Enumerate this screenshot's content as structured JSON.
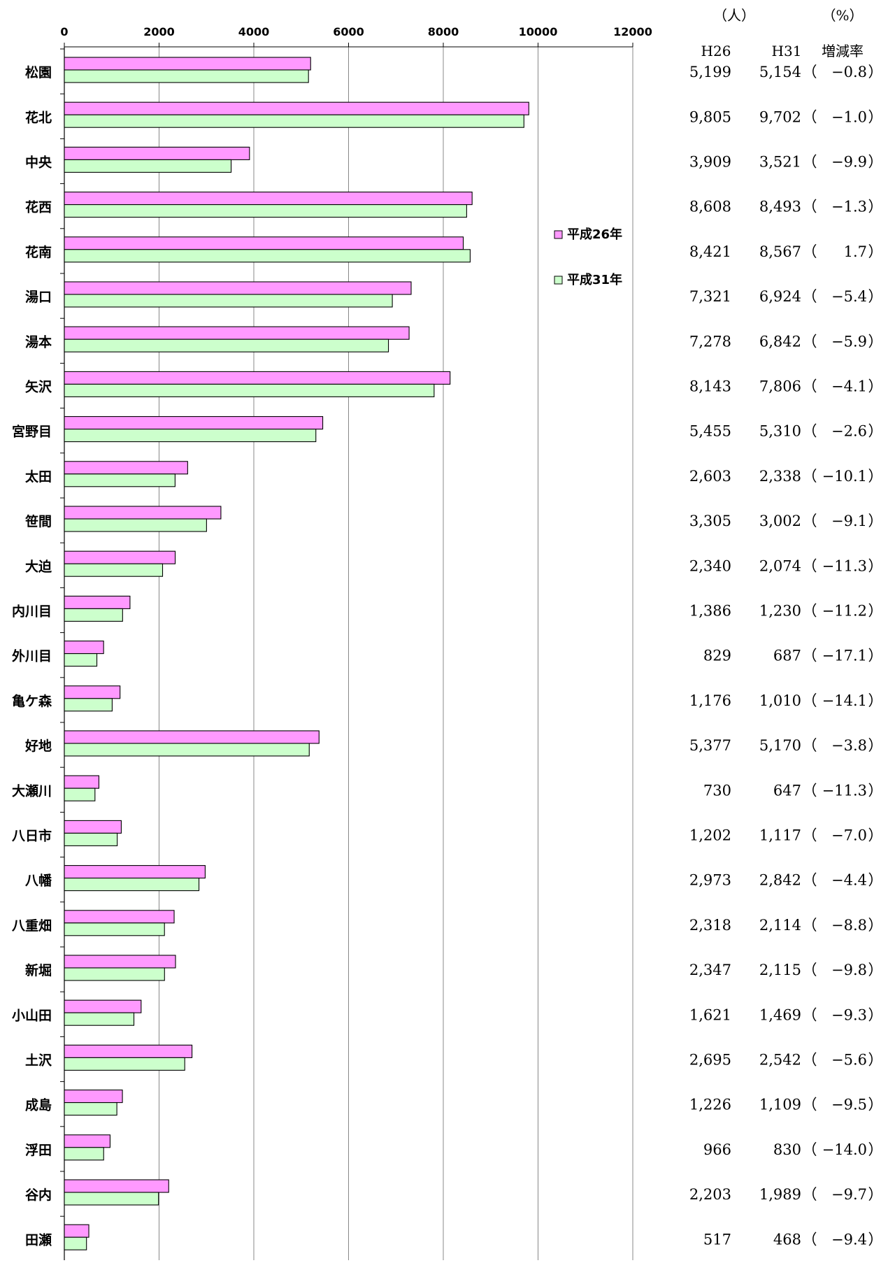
{
  "chart_data": {
    "type": "bar",
    "orientation": "horizontal",
    "categories": [
      "松園",
      "花北",
      "中央",
      "花西",
      "花南",
      "湯口",
      "湯本",
      "矢沢",
      "宮野目",
      "太田",
      "笹間",
      "大迫",
      "内川目",
      "外川目",
      "亀ケ森",
      "好地",
      "大瀬川",
      "八日市",
      "八幡",
      "八重畑",
      "新堀",
      "小山田",
      "土沢",
      "成島",
      "浮田",
      "谷内",
      "田瀬"
    ],
    "series": [
      {
        "name": "平成26年",
        "color": "#ff99ff",
        "values": [
          5199,
          9805,
          3909,
          8608,
          8421,
          7321,
          7278,
          8143,
          5455,
          2603,
          3305,
          2340,
          1386,
          829,
          1176,
          5377,
          730,
          1202,
          2973,
          2318,
          2347,
          1621,
          2695,
          1226,
          966,
          2203,
          517
        ]
      },
      {
        "name": "平成31年",
        "color": "#ccffcc",
        "values": [
          5154,
          9702,
          3521,
          8493,
          8567,
          6924,
          6842,
          7806,
          5310,
          2338,
          3002,
          2074,
          1230,
          687,
          1010,
          5170,
          647,
          1117,
          2842,
          2114,
          2115,
          1469,
          2542,
          1109,
          830,
          1989,
          468
        ]
      }
    ],
    "xlim": [
      0,
      12000
    ],
    "x_ticks": [
      "0",
      "2000",
      "4000",
      "6000",
      "8000",
      "10000",
      "12000"
    ],
    "grid": true,
    "legend_position": "right"
  },
  "table": {
    "unit_people": "（人）",
    "unit_percent": "（%）",
    "col_h26": "H26",
    "col_h31": "H31",
    "col_rate": "増減率",
    "rows": [
      {
        "h26": "5,199",
        "h31": "5,154",
        "rate": "−0.8"
      },
      {
        "h26": "9,805",
        "h31": "9,702",
        "rate": "−1.0"
      },
      {
        "h26": "3,909",
        "h31": "3,521",
        "rate": "−9.9"
      },
      {
        "h26": "8,608",
        "h31": "8,493",
        "rate": "−1.3"
      },
      {
        "h26": "8,421",
        "h31": "8,567",
        "rate": "1.7"
      },
      {
        "h26": "7,321",
        "h31": "6,924",
        "rate": "−5.4"
      },
      {
        "h26": "7,278",
        "h31": "6,842",
        "rate": "−5.9"
      },
      {
        "h26": "8,143",
        "h31": "7,806",
        "rate": "−4.1"
      },
      {
        "h26": "5,455",
        "h31": "5,310",
        "rate": "−2.6"
      },
      {
        "h26": "2,603",
        "h31": "2,338",
        "rate": "−10.1"
      },
      {
        "h26": "3,305",
        "h31": "3,002",
        "rate": "−9.1"
      },
      {
        "h26": "2,340",
        "h31": "2,074",
        "rate": "−11.3"
      },
      {
        "h26": "1,386",
        "h31": "1,230",
        "rate": "−11.2"
      },
      {
        "h26": "829",
        "h31": "687",
        "rate": "−17.1"
      },
      {
        "h26": "1,176",
        "h31": "1,010",
        "rate": "−14.1"
      },
      {
        "h26": "5,377",
        "h31": "5,170",
        "rate": "−3.8"
      },
      {
        "h26": "730",
        "h31": "647",
        "rate": "−11.3"
      },
      {
        "h26": "1,202",
        "h31": "1,117",
        "rate": "−7.0"
      },
      {
        "h26": "2,973",
        "h31": "2,842",
        "rate": "−4.4"
      },
      {
        "h26": "2,318",
        "h31": "2,114",
        "rate": "−8.8"
      },
      {
        "h26": "2,347",
        "h31": "2,115",
        "rate": "−9.8"
      },
      {
        "h26": "1,621",
        "h31": "1,469",
        "rate": "−9.3"
      },
      {
        "h26": "2,695",
        "h31": "2,542",
        "rate": "−5.6"
      },
      {
        "h26": "1,226",
        "h31": "1,109",
        "rate": "−9.5"
      },
      {
        "h26": "966",
        "h31": "830",
        "rate": "−14.0"
      },
      {
        "h26": "2,203",
        "h31": "1,989",
        "rate": "−9.7"
      },
      {
        "h26": "517",
        "h31": "468",
        "rate": "−9.4"
      }
    ],
    "open_paren": "（",
    "close_paren": "）"
  }
}
